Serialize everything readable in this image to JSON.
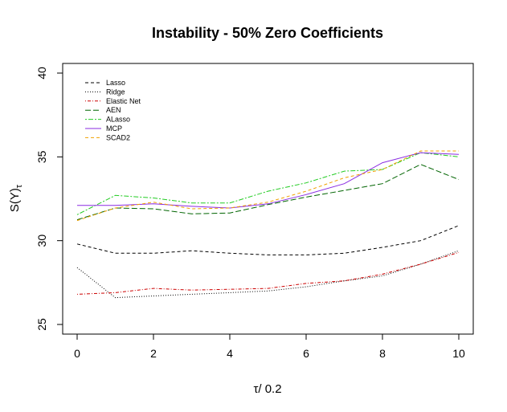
{
  "chart_data": {
    "type": "line",
    "title": "Instability - 50% Zero Coefficients",
    "xlabel_symbol": "τ",
    "xlabel_rest": "/ 0.2",
    "ylabel_main": "S(Y)",
    "ylabel_sub": "τ",
    "xlim": [
      0,
      10
    ],
    "ylim": [
      25,
      40
    ],
    "x_ticks": [
      0,
      2,
      4,
      6,
      8,
      10
    ],
    "x_tick_labels": [
      "0",
      "2",
      "4",
      "6",
      "8",
      "10"
    ],
    "y_ticks": [
      25,
      30,
      35,
      40
    ],
    "y_tick_labels": [
      "25",
      "30",
      "35",
      "40"
    ],
    "grid": false,
    "legend_position": "top-left",
    "x": [
      0,
      1,
      2,
      3,
      4,
      5,
      6,
      7,
      8,
      9,
      10
    ],
    "series": [
      {
        "name": "Lasso",
        "color": "#000000",
        "dash": "dashed",
        "values": [
          29.8,
          29.25,
          29.25,
          29.4,
          29.25,
          29.15,
          29.15,
          29.25,
          29.6,
          30.0,
          30.9
        ]
      },
      {
        "name": "Ridge",
        "color": "#000000",
        "dash": "dotted",
        "values": [
          28.4,
          26.6,
          26.7,
          26.8,
          26.9,
          27.0,
          27.25,
          27.6,
          27.9,
          28.6,
          29.4
        ]
      },
      {
        "name": "Elastic Net",
        "color": "#cc0000",
        "dash": "dotdash",
        "values": [
          26.8,
          26.9,
          27.15,
          27.05,
          27.1,
          27.15,
          27.45,
          27.6,
          28.0,
          28.6,
          29.3
        ]
      },
      {
        "name": "AEN",
        "color": "#006400",
        "dash": "longdash",
        "values": [
          31.25,
          31.95,
          31.9,
          31.6,
          31.65,
          32.15,
          32.6,
          33.0,
          33.4,
          34.55,
          33.65
        ]
      },
      {
        "name": "ALasso",
        "color": "#22cc22",
        "dash": "twodash",
        "values": [
          31.55,
          32.7,
          32.55,
          32.25,
          32.25,
          32.95,
          33.45,
          34.15,
          34.25,
          35.25,
          35.0
        ]
      },
      {
        "name": "MCP",
        "color": "#8a2be2",
        "dash": "solid",
        "values": [
          32.1,
          32.1,
          32.2,
          32.05,
          31.95,
          32.2,
          32.75,
          33.4,
          34.65,
          35.25,
          35.15
        ]
      },
      {
        "name": "SCAD2",
        "color": "#f0a000",
        "dash": "dashed",
        "values": [
          31.2,
          31.95,
          32.3,
          31.9,
          31.95,
          32.3,
          32.95,
          33.75,
          34.25,
          35.35,
          35.35
        ]
      }
    ]
  }
}
